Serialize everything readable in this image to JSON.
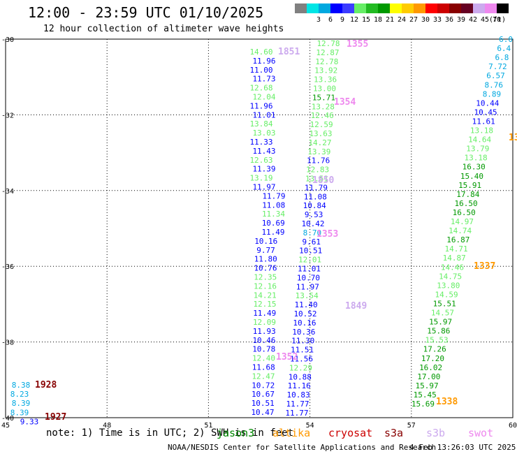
{
  "header": {
    "title": "12:00 - 23:59 UTC 01/10/2025",
    "subtitle": "12 hour collection of altimeter wave heights"
  },
  "scale": {
    "unit": "(ft)",
    "bins": [
      {
        "label": "",
        "color": "#808080"
      },
      {
        "label": "3",
        "color": "#00e5e5"
      },
      {
        "label": "6",
        "color": "#00a8e0"
      },
      {
        "label": "9",
        "color": "#0000ff"
      },
      {
        "label": "12",
        "color": "#3c3cff"
      },
      {
        "label": "15",
        "color": "#66ee66"
      },
      {
        "label": "18",
        "color": "#22bb22"
      },
      {
        "label": "21",
        "color": "#009900"
      },
      {
        "label": "24",
        "color": "#ffff00"
      },
      {
        "label": "27",
        "color": "#ffcc00"
      },
      {
        "label": "30",
        "color": "#ff9900"
      },
      {
        "label": "33",
        "color": "#ff0000"
      },
      {
        "label": "36",
        "color": "#cc0000"
      },
      {
        "label": "39",
        "color": "#880000"
      },
      {
        "label": "42",
        "color": "#660022"
      },
      {
        "label": "45",
        "color": "#ccaaee"
      },
      {
        "label": "70",
        "color": "#ee88ee"
      },
      {
        "label": "",
        "color": "#000000"
      }
    ]
  },
  "axes": {
    "x_ticks": [
      "45",
      "48",
      "51",
      "54",
      "57",
      "60"
    ],
    "y_ticks": [
      "-30",
      "-32",
      "-34",
      "-36",
      "-38",
      "-40"
    ]
  },
  "chart_data": {
    "type": "scatter",
    "xlim": [
      45,
      60
    ],
    "ylim": [
      -40,
      -30
    ],
    "grid": true,
    "series": [
      {
        "name": "jason3",
        "color": "#008800",
        "points": []
      },
      {
        "name": "altika",
        "color": "#ff9900",
        "points": [
          {
            "x": 60.1,
            "y": -32.7,
            "v": "13"
          }
        ]
      },
      {
        "name": "cryosat",
        "color": "#cc0000",
        "points": []
      },
      {
        "name": "s3a",
        "color": "#880000",
        "points": []
      },
      {
        "name": "s3b",
        "color": "#ccaaee",
        "points": []
      },
      {
        "name": "swot",
        "color": "#ee88ee",
        "points": []
      },
      {
        "name": "track",
        "color": "",
        "points": [
          {
            "x": 54.0,
            "y": -30.1,
            "v": "12.78",
            "c": "#66ee66"
          },
          {
            "x": 54.0,
            "y": -30.35,
            "v": "12.87",
            "c": "#66ee66"
          },
          {
            "x": 53.95,
            "y": -30.6,
            "v": "12.78",
            "c": "#66ee66"
          },
          {
            "x": 53.9,
            "y": -30.85,
            "v": "13.92",
            "c": "#66ee66"
          },
          {
            "x": 53.85,
            "y": -31.1,
            "v": "13.36",
            "c": "#66ee66"
          },
          {
            "x": 53.8,
            "y": -31.35,
            "v": "13.00",
            "c": "#66ee66"
          },
          {
            "x": 53.75,
            "y": -31.6,
            "v": "15.71",
            "c": "#009900"
          },
          {
            "x": 53.75,
            "y": -31.75,
            "v": "13.28",
            "c": "#66ee66"
          },
          {
            "x": 53.7,
            "y": -32.0,
            "v": "12.46",
            "c": "#66ee66"
          },
          {
            "x": 53.65,
            "y": -32.25,
            "v": "12.59",
            "c": "#66ee66"
          },
          {
            "x": 53.6,
            "y": -32.5,
            "v": "13.63",
            "c": "#66ee66"
          },
          {
            "x": 53.55,
            "y": -32.75,
            "v": "14.27",
            "c": "#66ee66"
          },
          {
            "x": 53.5,
            "y": -33.0,
            "v": "13.39",
            "c": "#66ee66"
          },
          {
            "x": 53.4,
            "y": -33.25,
            "v": "11.76",
            "c": "#0000ff"
          },
          {
            "x": 53.35,
            "y": -33.5,
            "v": "12.83",
            "c": "#66ee66"
          },
          {
            "x": 53.3,
            "y": -33.75,
            "v": "13.51",
            "c": "#66ee66"
          },
          {
            "x": 53.25,
            "y": -34.0,
            "v": "11.79",
            "c": "#0000ff"
          },
          {
            "x": 53.2,
            "y": -34.25,
            "v": "11.08",
            "c": "#0000ff"
          },
          {
            "x": 53.15,
            "y": -34.5,
            "v": "10.84",
            "c": "#0000ff"
          },
          {
            "x": 53.1,
            "y": -34.75,
            "v": "9.53",
            "c": "#0000ff"
          },
          {
            "x": 53.05,
            "y": -35.0,
            "v": "10.42",
            "c": "#0000ff"
          },
          {
            "x": 53.0,
            "y": -35.25,
            "v": "8.70",
            "c": "#00a8e0"
          },
          {
            "x": 52.95,
            "y": -35.5,
            "v": "9.61",
            "c": "#0000ff"
          },
          {
            "x": 52.9,
            "y": -35.75,
            "v": "10.51",
            "c": "#0000ff"
          },
          {
            "x": 52.85,
            "y": -36.0,
            "v": "12.01",
            "c": "#66ee66"
          },
          {
            "x": 52.8,
            "y": -36.25,
            "v": "11.01",
            "c": "#0000ff"
          },
          {
            "x": 52.75,
            "y": -36.5,
            "v": "10.70",
            "c": "#0000ff"
          },
          {
            "x": 52.7,
            "y": -36.75,
            "v": "11.97",
            "c": "#0000ff"
          },
          {
            "x": 52.65,
            "y": -37.0,
            "v": "13.54",
            "c": "#66ee66"
          },
          {
            "x": 52.6,
            "y": -37.25,
            "v": "11.40",
            "c": "#0000ff"
          },
          {
            "x": 52.55,
            "y": -37.5,
            "v": "10.52",
            "c": "#0000ff"
          },
          {
            "x": 52.5,
            "y": -37.75,
            "v": "10.16",
            "c": "#0000ff"
          },
          {
            "x": 52.45,
            "y": -38.0,
            "v": "10.36",
            "c": "#0000ff"
          },
          {
            "x": 52.4,
            "y": -38.25,
            "v": "11.30",
            "c": "#0000ff"
          },
          {
            "x": 52.35,
            "y": -38.5,
            "v": "11.51",
            "c": "#0000ff"
          },
          {
            "x": 52.3,
            "y": -38.75,
            "v": "11.56",
            "c": "#0000ff"
          },
          {
            "x": 52.25,
            "y": -39.0,
            "v": "12.29",
            "c": "#66ee66"
          },
          {
            "x": 52.2,
            "y": -39.25,
            "v": "10.88",
            "c": "#0000ff"
          },
          {
            "x": 52.15,
            "y": -39.5,
            "v": "11.16",
            "c": "#0000ff"
          },
          {
            "x": 52.1,
            "y": -39.75,
            "v": "10.83",
            "c": "#0000ff"
          },
          {
            "x": 52.05,
            "y": -40.0,
            "v": "11.77",
            "c": "#0000ff"
          },
          {
            "x": 52.0,
            "y": -40.25,
            "v": "11.77",
            "c": "#0000ff"
          }
        ]
      }
    ]
  },
  "values": {
    "trackA": [
      {
        "v": "14.60",
        "c": "#66ee66"
      },
      {
        "v": "11.96",
        "c": "#0000ff"
      },
      {
        "v": "11.00",
        "c": "#0000ff"
      },
      {
        "v": "11.73",
        "c": "#0000ff"
      },
      {
        "v": "12.68",
        "c": "#66ee66"
      },
      {
        "v": "12.04",
        "c": "#66ee66"
      },
      {
        "v": "11.96",
        "c": "#0000ff"
      },
      {
        "v": "11.01",
        "c": "#0000ff"
      },
      {
        "v": "13.84",
        "c": "#66ee66"
      },
      {
        "v": "13.03",
        "c": "#66ee66"
      },
      {
        "v": "11.33",
        "c": "#0000ff"
      },
      {
        "v": "11.43",
        "c": "#0000ff"
      },
      {
        "v": "12.63",
        "c": "#66ee66"
      },
      {
        "v": "11.39",
        "c": "#0000ff"
      },
      {
        "v": "13.19",
        "c": "#66ee66"
      },
      {
        "v": "11.97",
        "c": "#0000ff"
      },
      {
        "v": "11.79",
        "c": "#0000ff"
      },
      {
        "v": "11.08",
        "c": "#0000ff"
      },
      {
        "v": "11.34",
        "c": "#66ee66"
      },
      {
        "v": "10.69",
        "c": "#0000ff"
      },
      {
        "v": "11.49",
        "c": "#0000ff"
      },
      {
        "v": "10.16",
        "c": "#0000ff"
      },
      {
        "v": "9.77",
        "c": "#0000ff"
      },
      {
        "v": "11.80",
        "c": "#0000ff"
      },
      {
        "v": "10.76",
        "c": "#0000ff"
      },
      {
        "v": "12.35",
        "c": "#66ee66"
      },
      {
        "v": "12.16",
        "c": "#66ee66"
      },
      {
        "v": "14.21",
        "c": "#66ee66"
      },
      {
        "v": "12.15",
        "c": "#66ee66"
      },
      {
        "v": "11.49",
        "c": "#0000ff"
      },
      {
        "v": "12.09",
        "c": "#66ee66"
      },
      {
        "v": "11.93",
        "c": "#0000ff"
      },
      {
        "v": "10.46",
        "c": "#0000ff"
      },
      {
        "v": "10.78",
        "c": "#0000ff"
      },
      {
        "v": "12.40",
        "c": "#66ee66"
      },
      {
        "v": "11.68",
        "c": "#0000ff"
      },
      {
        "v": "12.47",
        "c": "#66ee66"
      },
      {
        "v": "10.72",
        "c": "#0000ff"
      },
      {
        "v": "10.67",
        "c": "#0000ff"
      },
      {
        "v": "10.51",
        "c": "#0000ff"
      },
      {
        "v": "10.47",
        "c": "#0000ff"
      }
    ],
    "trackB": [
      {
        "v": "12.78",
        "c": "#66ee66"
      },
      {
        "v": "12.87",
        "c": "#66ee66"
      },
      {
        "v": "12.78",
        "c": "#66ee66"
      },
      {
        "v": "13.92",
        "c": "#66ee66"
      },
      {
        "v": "13.36",
        "c": "#66ee66"
      },
      {
        "v": "13.00",
        "c": "#66ee66"
      },
      {
        "v": "15.71",
        "c": "#009900"
      },
      {
        "v": "13.28",
        "c": "#66ee66"
      },
      {
        "v": "12.46",
        "c": "#66ee66"
      },
      {
        "v": "12.59",
        "c": "#66ee66"
      },
      {
        "v": "13.63",
        "c": "#66ee66"
      },
      {
        "v": "14.27",
        "c": "#66ee66"
      },
      {
        "v": "13.39",
        "c": "#66ee66"
      },
      {
        "v": "11.76",
        "c": "#0000ff"
      },
      {
        "v": "12.83",
        "c": "#66ee66"
      },
      {
        "v": "13.51",
        "c": "#66ee66"
      },
      {
        "v": "11.79",
        "c": "#0000ff"
      },
      {
        "v": "11.08",
        "c": "#0000ff"
      },
      {
        "v": "10.84",
        "c": "#0000ff"
      },
      {
        "v": "9.53",
        "c": "#0000ff"
      },
      {
        "v": "10.42",
        "c": "#0000ff"
      },
      {
        "v": "8.70",
        "c": "#00a8e0"
      },
      {
        "v": "9.61",
        "c": "#0000ff"
      },
      {
        "v": "10.51",
        "c": "#0000ff"
      },
      {
        "v": "12.01",
        "c": "#66ee66"
      },
      {
        "v": "11.01",
        "c": "#0000ff"
      },
      {
        "v": "10.70",
        "c": "#0000ff"
      },
      {
        "v": "11.97",
        "c": "#0000ff"
      },
      {
        "v": "13.54",
        "c": "#66ee66"
      },
      {
        "v": "11.40",
        "c": "#0000ff"
      },
      {
        "v": "10.52",
        "c": "#0000ff"
      },
      {
        "v": "10.16",
        "c": "#0000ff"
      },
      {
        "v": "10.36",
        "c": "#0000ff"
      },
      {
        "v": "11.30",
        "c": "#0000ff"
      },
      {
        "v": "11.51",
        "c": "#0000ff"
      },
      {
        "v": "11.56",
        "c": "#0000ff"
      },
      {
        "v": "12.29",
        "c": "#66ee66"
      },
      {
        "v": "10.88",
        "c": "#0000ff"
      },
      {
        "v": "11.16",
        "c": "#0000ff"
      },
      {
        "v": "10.83",
        "c": "#0000ff"
      },
      {
        "v": "11.77",
        "c": "#0000ff"
      },
      {
        "v": "11.77",
        "c": "#0000ff"
      }
    ],
    "trackC": [
      {
        "v": "6.0",
        "c": "#00a8e0"
      },
      {
        "v": "6.4",
        "c": "#00a8e0"
      },
      {
        "v": "6.8",
        "c": "#00a8e0"
      },
      {
        "v": "7.72",
        "c": "#00a8e0"
      },
      {
        "v": "6.57",
        "c": "#00a8e0"
      },
      {
        "v": "8.76",
        "c": "#00a8e0"
      },
      {
        "v": "8.89",
        "c": "#00a8e0"
      },
      {
        "v": "10.44",
        "c": "#0000ff"
      },
      {
        "v": "10.45",
        "c": "#0000ff"
      },
      {
        "v": "11.61",
        "c": "#0000ff"
      },
      {
        "v": "13.18",
        "c": "#66ee66"
      },
      {
        "v": "14.64",
        "c": "#66ee66"
      },
      {
        "v": "13.79",
        "c": "#66ee66"
      },
      {
        "v": "13.18",
        "c": "#66ee66"
      },
      {
        "v": "16.30",
        "c": "#009900"
      },
      {
        "v": "15.40",
        "c": "#009900"
      },
      {
        "v": "15.91",
        "c": "#009900"
      },
      {
        "v": "17.84",
        "c": "#009900"
      },
      {
        "v": "16.50",
        "c": "#009900"
      },
      {
        "v": "16.50",
        "c": "#009900"
      },
      {
        "v": "14.97",
        "c": "#66ee66"
      },
      {
        "v": "14.74",
        "c": "#66ee66"
      },
      {
        "v": "16.87",
        "c": "#009900"
      },
      {
        "v": "14.71",
        "c": "#66ee66"
      },
      {
        "v": "14.87",
        "c": "#66ee66"
      },
      {
        "v": "14.46",
        "c": "#66ee66"
      },
      {
        "v": "14.75",
        "c": "#66ee66"
      },
      {
        "v": "13.80",
        "c": "#66ee66"
      },
      {
        "v": "14.59",
        "c": "#66ee66"
      },
      {
        "v": "15.51",
        "c": "#009900"
      },
      {
        "v": "14.57",
        "c": "#66ee66"
      },
      {
        "v": "15.97",
        "c": "#009900"
      },
      {
        "v": "15.86",
        "c": "#009900"
      },
      {
        "v": "15.53",
        "c": "#66ee66"
      },
      {
        "v": "17.26",
        "c": "#009900"
      },
      {
        "v": "17.20",
        "c": "#009900"
      },
      {
        "v": "16.02",
        "c": "#009900"
      },
      {
        "v": "17.00",
        "c": "#009900"
      },
      {
        "v": "15.97",
        "c": "#009900"
      },
      {
        "v": "15.45",
        "c": "#009900"
      },
      {
        "v": "15.69",
        "c": "#009900"
      }
    ],
    "trackD": [
      {
        "v": "8.38",
        "c": "#00a8e0"
      },
      {
        "v": "8.23",
        "c": "#00a8e0"
      },
      {
        "v": "8.39",
        "c": "#00a8e0"
      },
      {
        "v": "8.39",
        "c": "#00a8e0"
      },
      {
        "v": "9.33",
        "c": "#0000ff"
      }
    ],
    "passes": [
      {
        "v": "1851",
        "c": "#ccaaee"
      },
      {
        "v": "1355",
        "c": "#ee88ee"
      },
      {
        "v": "1354",
        "c": "#ee88ee"
      },
      {
        "v": "1850",
        "c": "#ccaaee"
      },
      {
        "v": "1353",
        "c": "#ee88ee"
      },
      {
        "v": "1849",
        "c": "#ccaaee"
      },
      {
        "v": "1352",
        "c": "#ee88ee"
      },
      {
        "v": "1337",
        "c": "#ff9900"
      },
      {
        "v": "1338",
        "c": "#ff9900"
      },
      {
        "v": "1928",
        "c": "#880000"
      },
      {
        "v": "1927",
        "c": "#880000"
      },
      {
        "v": "13",
        "c": "#ff9900"
      }
    ]
  },
  "footer": {
    "note": "note: 1) Time is in UTC; 2) SWH is in feet",
    "credit": "NOAA/NESDIS Center for Satellite Applications and Research",
    "stamp": "4 Feb 13:26:03 UTC 2025",
    "satellites": [
      "jason3",
      "altika",
      "cryosat",
      "s3a",
      "s3b",
      "swot"
    ]
  }
}
